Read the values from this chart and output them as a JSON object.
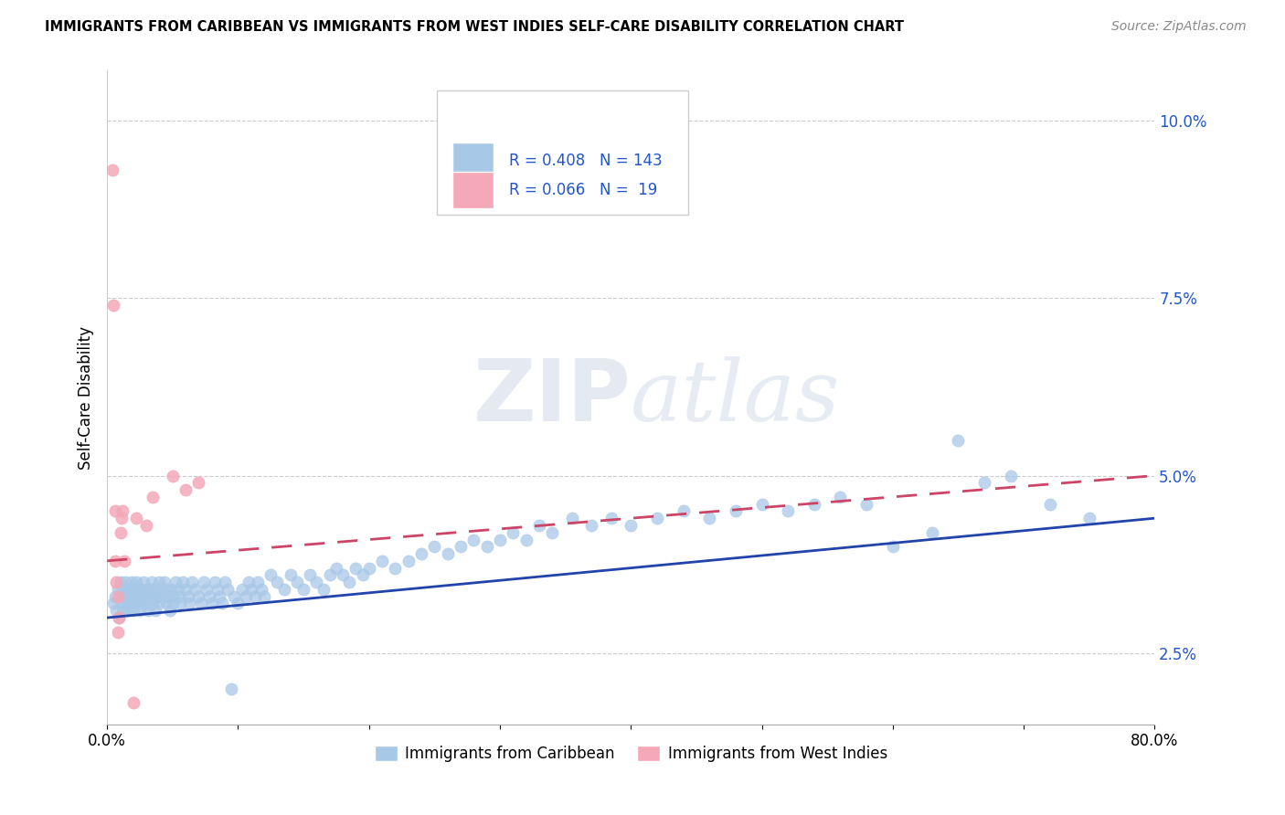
{
  "title": "IMMIGRANTS FROM CARIBBEAN VS IMMIGRANTS FROM WEST INDIES SELF-CARE DISABILITY CORRELATION CHART",
  "source": "Source: ZipAtlas.com",
  "ylabel": "Self-Care Disability",
  "watermark_zip": "ZIP",
  "watermark_atlas": "atlas",
  "xlim": [
    0.0,
    0.8
  ],
  "ylim": [
    0.015,
    0.107
  ],
  "yticks": [
    0.025,
    0.05,
    0.075,
    0.1
  ],
  "ytick_labels": [
    "2.5%",
    "5.0%",
    "7.5%",
    "10.0%"
  ],
  "caribbean_color": "#a8c8e8",
  "caribbean_edge_color": "#7aaac8",
  "west_indies_color": "#f4a8b8",
  "west_indies_edge_color": "#d47888",
  "caribbean_line_color": "#2244aa",
  "west_indies_line_color": "#cc4466",
  "R_caribbean": 0.408,
  "N_caribbean": 143,
  "R_west_indies": 0.066,
  "N_west_indies": 19,
  "legend_label_caribbean": "Immigrants from Caribbean",
  "legend_label_west_indies": "Immigrants from West Indies",
  "carib_trend_x": [
    0.0,
    0.8
  ],
  "carib_trend_y": [
    0.03,
    0.044
  ],
  "wi_trend_x": [
    0.0,
    0.8
  ],
  "wi_trend_y": [
    0.038,
    0.05
  ]
}
